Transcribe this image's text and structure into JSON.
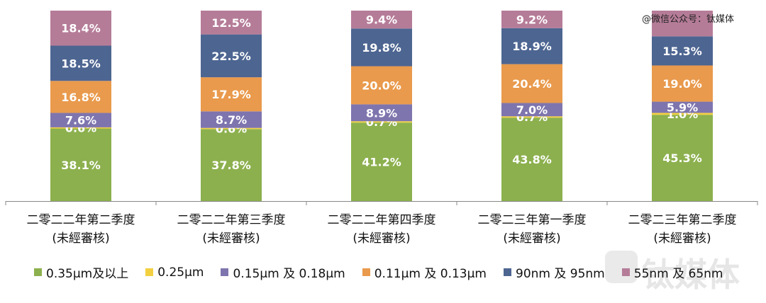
{
  "watermark": "@微信公众号：钛媒体",
  "logo_text": "钛媒体",
  "chart_data": {
    "type": "bar",
    "stacked": true,
    "percent_stacked": true,
    "categories": [
      [
        "二零二二年第二季度",
        "(未經審核)"
      ],
      [
        "二零二二年第三季度",
        "(未經審核)"
      ],
      [
        "二零二二年第四季度",
        "(未經審核)"
      ],
      [
        "二零二三年第一季度",
        "(未經審核)"
      ],
      [
        "二零二三年第二季度",
        "(未經審核)"
      ]
    ],
    "series": [
      {
        "name": "0.35μm及以上",
        "color": "#8CB04E",
        "values": [
          38.1,
          37.8,
          41.2,
          43.8,
          45.3
        ],
        "labels": [
          "38.1%",
          "37.8%",
          "41.2%",
          "43.8%",
          "45.3%"
        ]
      },
      {
        "name": "0.25μm",
        "color": "#F2D040",
        "values": [
          0.6,
          0.6,
          0.7,
          0.7,
          1.0
        ],
        "labels": [
          "0.6%",
          "0.6%",
          "0.7%",
          "0.7%",
          "1.0%"
        ]
      },
      {
        "name": "0.15μm 及 0.18μm",
        "color": "#7E75AE",
        "values": [
          7.6,
          8.7,
          8.9,
          7.0,
          5.9
        ],
        "labels": [
          "7.6%",
          "8.7%",
          "8.9%",
          "7.0%",
          "5.9%"
        ]
      },
      {
        "name": "0.11μm 及 0.13μm",
        "color": "#E99A4C",
        "values": [
          16.8,
          17.9,
          20.0,
          20.4,
          19.0
        ],
        "labels": [
          "16.8%",
          "17.9%",
          "20.0%",
          "20.4%",
          "19.0%"
        ]
      },
      {
        "name": "90nm 及 95nm",
        "color": "#4D6591",
        "values": [
          18.5,
          22.5,
          19.8,
          18.9,
          15.3
        ],
        "labels": [
          "18.5%",
          "22.5%",
          "19.8%",
          "18.9%",
          "15.3%"
        ]
      },
      {
        "name": "55nm 及 65nm",
        "color": "#B57C98",
        "values": [
          18.4,
          12.5,
          9.4,
          9.2,
          13.5
        ],
        "labels": [
          "18.4%",
          "12.5%",
          "9.4%",
          "9.2%",
          ""
        ]
      }
    ],
    "ylim": [
      0,
      100
    ],
    "grid": false,
    "legend_position": "bottom"
  }
}
